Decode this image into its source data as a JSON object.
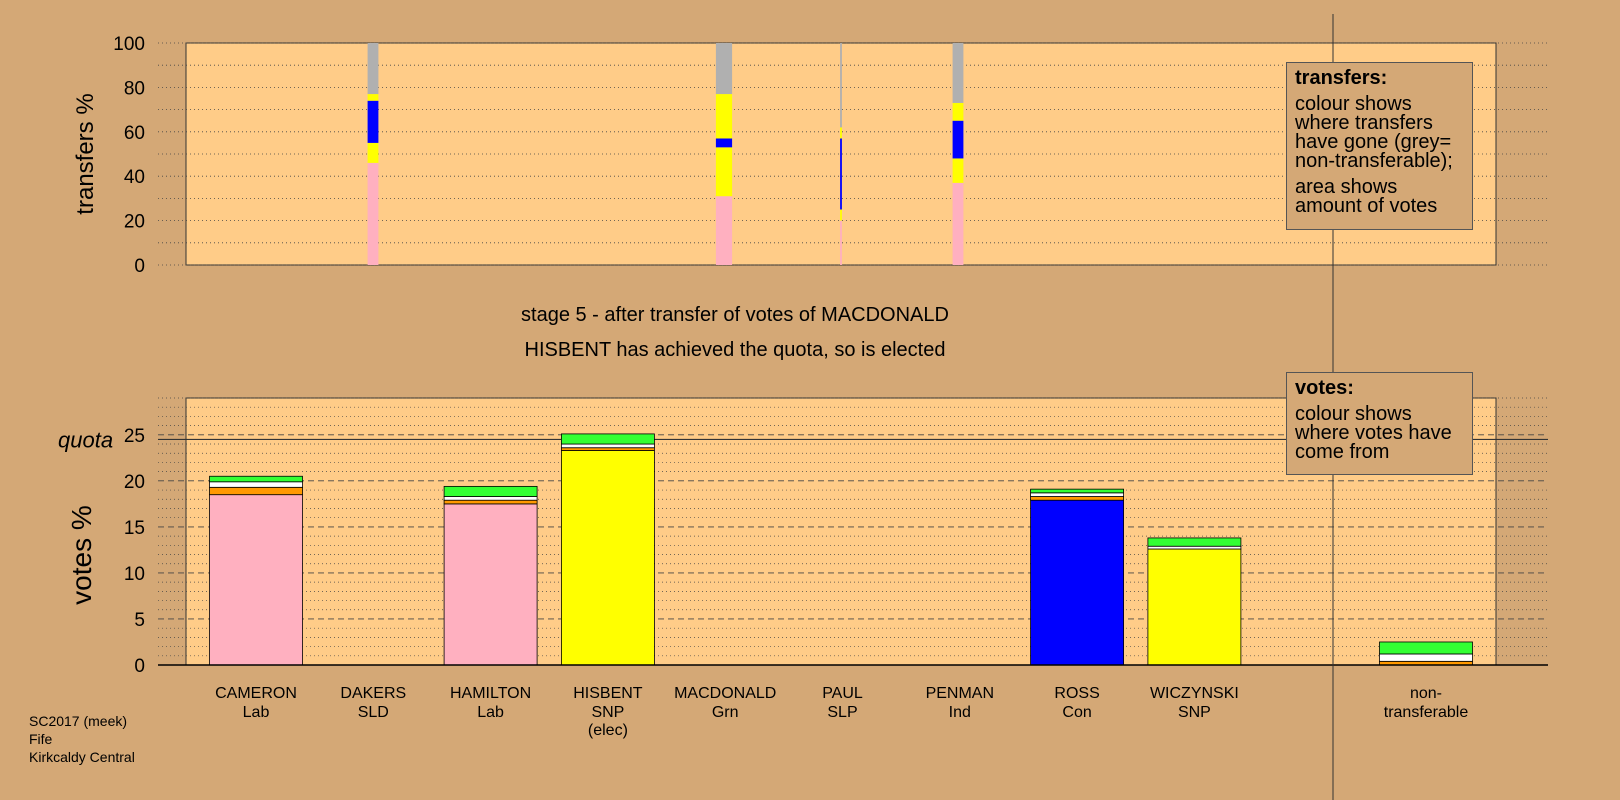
{
  "chart_data": {
    "type": "bar",
    "stage_title": "stage 5 - after transfer of votes of MACDONALD",
    "stage_subtitle": "HISBENT has achieved the quota, so is elected",
    "colors": {
      "Lab": "#ffb0c0",
      "SLD": "#ff9900",
      "SNP": "#ffff00",
      "Grn": "#33ff33",
      "SLP": "#ffffff",
      "Ind": "#ffffff",
      "Con": "#0000ff",
      "nontransferable": "#b0b0b0",
      "background": "#d4a876",
      "plot_background": "#ffcc88"
    },
    "transfers_chart": {
      "ylabel": "transfers %",
      "ylim": [
        0,
        100
      ],
      "yticks": [
        "0",
        "20",
        "40",
        "60",
        "80",
        "100"
      ],
      "bars": [
        {
          "candidate": "CAMERON",
          "width": 0.12,
          "segments": [
            {
              "party": "Lab",
              "value": 46
            },
            {
              "party": "SNP",
              "value": 9
            },
            {
              "party": "Con",
              "value": 19
            },
            {
              "party": "SNP",
              "value": 3
            },
            {
              "party": "nontransferable",
              "value": 23
            }
          ]
        },
        {
          "candidate": "HISBENT",
          "width": 0.18,
          "segments": [
            {
              "party": "Lab",
              "value": 31
            },
            {
              "party": "SNP",
              "value": 22
            },
            {
              "party": "Con",
              "value": 4
            },
            {
              "party": "SNP",
              "value": 20
            },
            {
              "party": "nontransferable",
              "value": 23
            }
          ]
        },
        {
          "candidate": "PAUL",
          "width": 0.02,
          "segments": [
            {
              "party": "Lab",
              "value": 20
            },
            {
              "party": "SNP",
              "value": 5
            },
            {
              "party": "Con",
              "value": 32
            },
            {
              "party": "SNP",
              "value": 5
            },
            {
              "party": "nontransferable",
              "value": 38
            }
          ]
        },
        {
          "candidate": "PENMAN",
          "width": 0.12,
          "segments": [
            {
              "party": "Lab",
              "value": 37
            },
            {
              "party": "SNP",
              "value": 11
            },
            {
              "party": "Con",
              "value": 17
            },
            {
              "party": "SNP",
              "value": 8
            },
            {
              "party": "nontransferable",
              "value": 27
            }
          ]
        }
      ]
    },
    "votes_chart": {
      "ylabel": "votes %",
      "ylim": [
        0,
        29
      ],
      "yticks": [
        "0",
        "5",
        "10",
        "15",
        "20",
        "25"
      ],
      "quota_label": "quota",
      "quota": 24.5,
      "bars": [
        {
          "candidate": "CAMERON",
          "segments": [
            {
              "party": "Lab",
              "value": 18.5
            },
            {
              "party": "SLD",
              "value": 0.8
            },
            {
              "party": "SLP",
              "value": 0.6
            },
            {
              "party": "Grn",
              "value": 0.6
            }
          ]
        },
        {
          "candidate": "HAMILTON",
          "segments": [
            {
              "party": "Lab",
              "value": 17.5
            },
            {
              "party": "SLD",
              "value": 0.4
            },
            {
              "party": "SLP",
              "value": 0.4
            },
            {
              "party": "Grn",
              "value": 1.1
            }
          ]
        },
        {
          "candidate": "HISBENT",
          "segments": [
            {
              "party": "SNP",
              "value": 23.3
            },
            {
              "party": "SLD",
              "value": 0.3
            },
            {
              "party": "SLP",
              "value": 0.4
            },
            {
              "party": "Grn",
              "value": 1.1
            }
          ]
        },
        {
          "candidate": "ROSS",
          "segments": [
            {
              "party": "Con",
              "value": 17.9
            },
            {
              "party": "SLD",
              "value": 0.4
            },
            {
              "party": "SLP",
              "value": 0.4
            },
            {
              "party": "Grn",
              "value": 0.4
            }
          ]
        },
        {
          "candidate": "WICZYNSKI",
          "segments": [
            {
              "party": "SNP",
              "value": 12.6
            },
            {
              "party": "SLP",
              "value": 0.3
            },
            {
              "party": "Grn",
              "value": 0.9
            }
          ]
        },
        {
          "candidate": "non-transferable",
          "segments": [
            {
              "party": "SLD",
              "value": 0.4
            },
            {
              "party": "SLP",
              "value": 0.8
            },
            {
              "party": "Grn",
              "value": 1.3
            }
          ]
        }
      ]
    },
    "candidates": [
      {
        "name": "CAMERON",
        "party": "Lab",
        "note": ""
      },
      {
        "name": "DAKERS",
        "party": "SLD",
        "note": ""
      },
      {
        "name": "HAMILTON",
        "party": "Lab",
        "note": ""
      },
      {
        "name": "HISBENT",
        "party": "SNP",
        "note": "(elec)"
      },
      {
        "name": "MACDONALD",
        "party": "Grn",
        "note": ""
      },
      {
        "name": "PAUL",
        "party": "SLP",
        "note": ""
      },
      {
        "name": "PENMAN",
        "party": "Ind",
        "note": ""
      },
      {
        "name": "ROSS",
        "party": "Con",
        "note": ""
      },
      {
        "name": "WICZYNSKI",
        "party": "SNP",
        "note": ""
      }
    ],
    "nontransferable_label": [
      "non-",
      "transferable"
    ]
  },
  "legend_transfers": {
    "title": "transfers:",
    "text1": "colour shows where transfers have gone (grey= non-transferable);",
    "text2": "area shows amount of votes"
  },
  "legend_votes": {
    "title": "votes:",
    "text1": "colour shows where votes have come from"
  },
  "footer": {
    "line1": "SC2017 (meek)",
    "line2": "Fife",
    "line3": "Kirkcaldy Central"
  }
}
